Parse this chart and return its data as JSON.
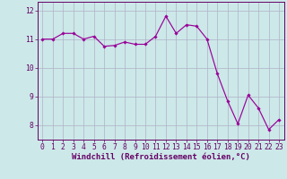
{
  "x": [
    0,
    1,
    2,
    3,
    4,
    5,
    6,
    7,
    8,
    9,
    10,
    11,
    12,
    13,
    14,
    15,
    16,
    17,
    18,
    19,
    20,
    21,
    22,
    23
  ],
  "y": [
    11.0,
    11.0,
    11.2,
    11.2,
    11.0,
    11.1,
    10.75,
    10.78,
    10.9,
    10.82,
    10.82,
    11.1,
    11.8,
    11.2,
    11.5,
    11.45,
    11.0,
    9.8,
    8.85,
    8.05,
    9.05,
    8.6,
    7.85,
    8.2
  ],
  "line_color": "#990099",
  "marker_color": "#990099",
  "bg_color": "#cce8e8",
  "grid_color": "#b0b0c8",
  "axis_color": "#660066",
  "xlabel": "Windchill (Refroidissement éolien,°C)",
  "ylim": [
    7.5,
    12.3
  ],
  "xlim": [
    -0.5,
    23.5
  ],
  "yticks": [
    8,
    9,
    10,
    11,
    12
  ],
  "xticks": [
    0,
    1,
    2,
    3,
    4,
    5,
    6,
    7,
    8,
    9,
    10,
    11,
    12,
    13,
    14,
    15,
    16,
    17,
    18,
    19,
    20,
    21,
    22,
    23
  ],
  "tick_fontsize": 5.8,
  "label_fontsize": 6.5
}
